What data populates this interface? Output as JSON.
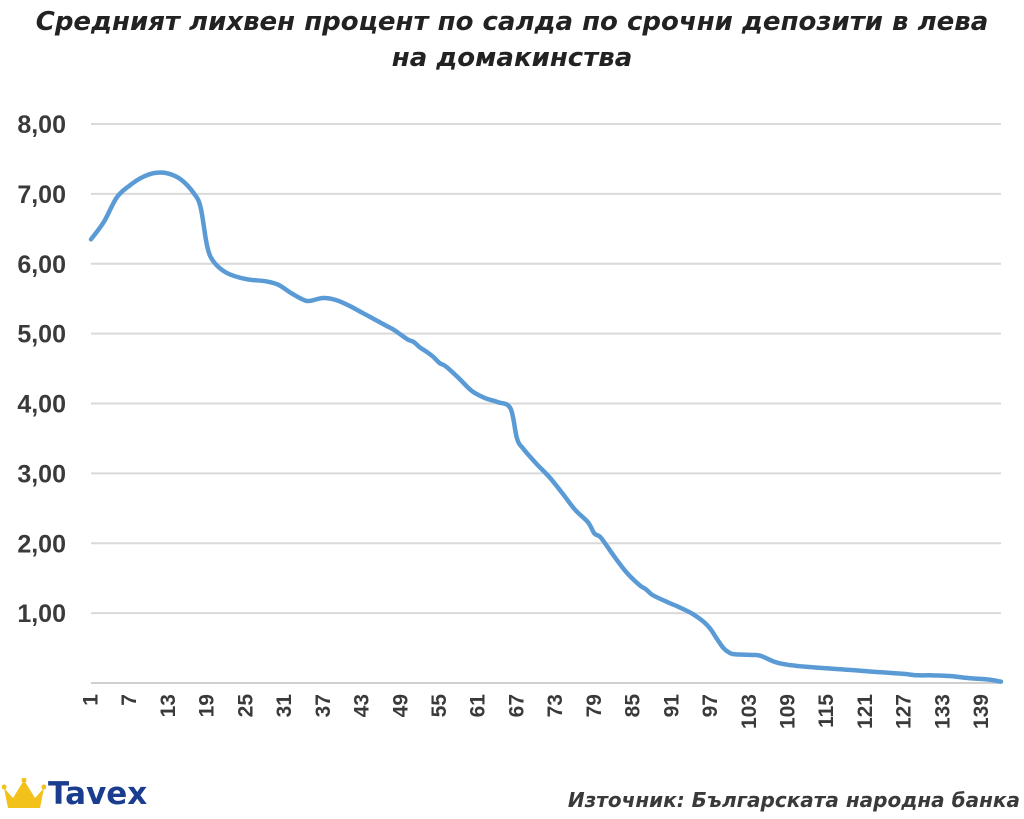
{
  "chart_data": {
    "type": "line",
    "title_line1": "Средният лихвен процент по салда по срочни депозити в лева",
    "title_line2": "на домакинства",
    "xlabel": "",
    "ylabel": "",
    "x_range": [
      1,
      142
    ],
    "ylim": [
      0,
      8
    ],
    "y_ticks": [
      "8,00",
      "7,00",
      "6,00",
      "5,00",
      "4,00",
      "3,00",
      "2,00",
      "1,00"
    ],
    "y_tick_values": [
      8,
      7,
      6,
      5,
      4,
      3,
      2,
      1
    ],
    "x_ticks": [
      "1",
      "7",
      "13",
      "19",
      "25",
      "31",
      "37",
      "43",
      "49",
      "55",
      "61",
      "67",
      "73",
      "79",
      "85",
      "91",
      "97",
      "103",
      "109",
      "115",
      "121",
      "127",
      "133",
      "139"
    ],
    "grid": true,
    "legend": "none",
    "line_color": "#5b9bd5",
    "points": [
      [
        1,
        6.35
      ],
      [
        3,
        6.6
      ],
      [
        5,
        6.95
      ],
      [
        7,
        7.12
      ],
      [
        9,
        7.24
      ],
      [
        11,
        7.3
      ],
      [
        13,
        7.29
      ],
      [
        15,
        7.2
      ],
      [
        17,
        7.0
      ],
      [
        18,
        6.8
      ],
      [
        19,
        6.25
      ],
      [
        20,
        6.03
      ],
      [
        22,
        5.87
      ],
      [
        25,
        5.78
      ],
      [
        28,
        5.75
      ],
      [
        30,
        5.7
      ],
      [
        32,
        5.58
      ],
      [
        34,
        5.48
      ],
      [
        35,
        5.47
      ],
      [
        37,
        5.51
      ],
      [
        39,
        5.48
      ],
      [
        41,
        5.4
      ],
      [
        43,
        5.3
      ],
      [
        45,
        5.2
      ],
      [
        47,
        5.1
      ],
      [
        48,
        5.05
      ],
      [
        50,
        4.92
      ],
      [
        51,
        4.88
      ],
      [
        52,
        4.8
      ],
      [
        53,
        4.74
      ],
      [
        54,
        4.67
      ],
      [
        55,
        4.58
      ],
      [
        56,
        4.53
      ],
      [
        58,
        4.36
      ],
      [
        60,
        4.18
      ],
      [
        62,
        4.08
      ],
      [
        64,
        4.02
      ],
      [
        66,
        3.93
      ],
      [
        67,
        3.5
      ],
      [
        68,
        3.35
      ],
      [
        70,
        3.14
      ],
      [
        72,
        2.95
      ],
      [
        74,
        2.72
      ],
      [
        76,
        2.48
      ],
      [
        78,
        2.3
      ],
      [
        79,
        2.14
      ],
      [
        80,
        2.08
      ],
      [
        82,
        1.82
      ],
      [
        84,
        1.58
      ],
      [
        86,
        1.4
      ],
      [
        87,
        1.34
      ],
      [
        88,
        1.26
      ],
      [
        90,
        1.17
      ],
      [
        92,
        1.09
      ],
      [
        94,
        1.0
      ],
      [
        96,
        0.87
      ],
      [
        97,
        0.77
      ],
      [
        98,
        0.63
      ],
      [
        99,
        0.5
      ],
      [
        100,
        0.43
      ],
      [
        101,
        0.41
      ],
      [
        104,
        0.4
      ],
      [
        105,
        0.38
      ],
      [
        107,
        0.3
      ],
      [
        109,
        0.26
      ],
      [
        112,
        0.23
      ],
      [
        115,
        0.21
      ],
      [
        118,
        0.19
      ],
      [
        121,
        0.17
      ],
      [
        124,
        0.15
      ],
      [
        127,
        0.13
      ],
      [
        129,
        0.11
      ],
      [
        131,
        0.11
      ],
      [
        134,
        0.1
      ],
      [
        137,
        0.07
      ],
      [
        140,
        0.05
      ],
      [
        142,
        0.02
      ]
    ]
  },
  "footer": {
    "logo_text": "Tavex",
    "logo_icon": "crown-icon",
    "source": "Източник: Българската народна банка"
  }
}
